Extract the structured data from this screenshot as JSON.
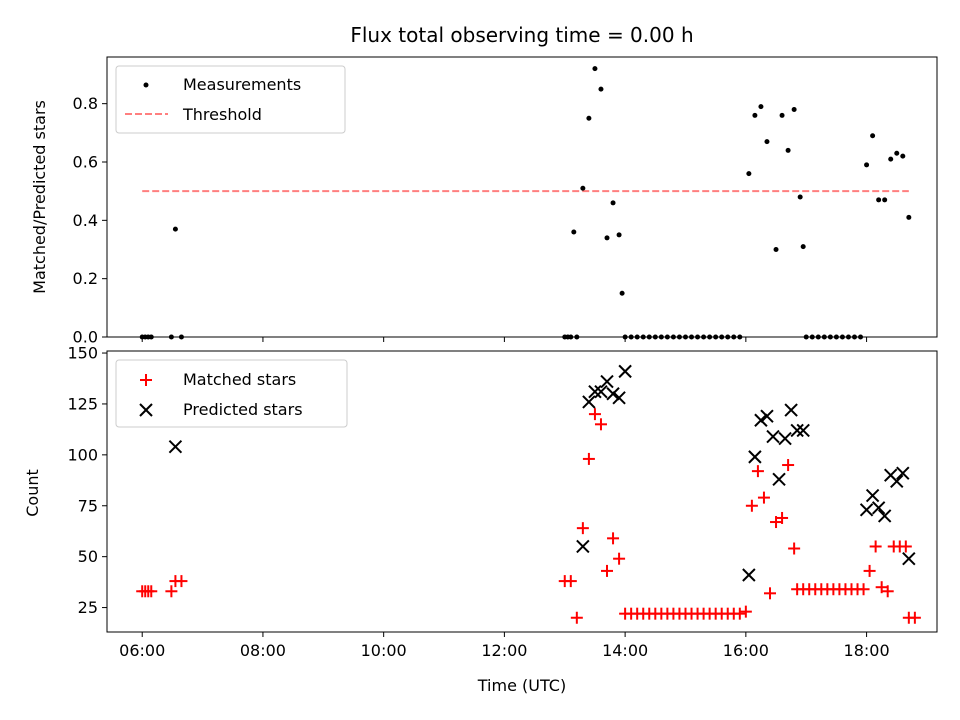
{
  "chart_data": [
    {
      "type": "scatter",
      "title": "Flux total observing time = 0.00 h",
      "ylabel": "Matched/Predicted stars",
      "xlabel": "",
      "xlim": [
        "05:25",
        "19:10"
      ],
      "ylim": [
        0,
        0.96
      ],
      "yticks": [
        0.0,
        0.2,
        0.4,
        0.6,
        0.8
      ],
      "grid": false,
      "legend": "upper left",
      "threshold": {
        "name": "Threshold",
        "value": 0.5,
        "color": "#ff7f7f",
        "style": "dashed"
      },
      "series": [
        {
          "name": "Measurements",
          "marker": "dot",
          "color": "#000000",
          "x": [
            "06:00",
            "06:03",
            "06:06",
            "06:09",
            "06:29",
            "06:33",
            "06:39",
            "13:00",
            "13:03",
            "13:06",
            "13:09",
            "13:12",
            "13:18",
            "13:24",
            "13:30",
            "13:36",
            "13:42",
            "13:48",
            "13:54",
            "13:57",
            "14:00",
            "14:06",
            "14:12",
            "14:18",
            "14:24",
            "14:30",
            "14:36",
            "14:42",
            "14:48",
            "14:54",
            "15:00",
            "15:06",
            "15:12",
            "15:18",
            "15:24",
            "15:30",
            "15:36",
            "15:42",
            "15:48",
            "15:54",
            "16:03",
            "16:09",
            "16:15",
            "16:21",
            "16:30",
            "16:36",
            "16:42",
            "16:48",
            "16:54",
            "16:57",
            "17:00",
            "17:06",
            "17:12",
            "17:18",
            "17:24",
            "17:30",
            "17:36",
            "17:42",
            "17:48",
            "17:54",
            "18:00",
            "18:06",
            "18:12",
            "18:18",
            "18:24",
            "18:30",
            "18:36",
            "18:42"
          ],
          "y": [
            0,
            0,
            0,
            0,
            0,
            0.37,
            0,
            0,
            0,
            0,
            0.36,
            0,
            0.51,
            0.75,
            0.92,
            0.85,
            0.34,
            0.46,
            0.35,
            0.15,
            0,
            0,
            0,
            0,
            0,
            0,
            0,
            0,
            0,
            0,
            0,
            0,
            0,
            0,
            0,
            0,
            0,
            0,
            0,
            0,
            0.56,
            0.76,
            0.79,
            0.67,
            0.3,
            0.76,
            0.64,
            0.78,
            0.48,
            0.31,
            0,
            0,
            0,
            0,
            0,
            0,
            0,
            0,
            0,
            0,
            0.59,
            0.69,
            0.47,
            0.47,
            0.61,
            0.63,
            0.62,
            0.41
          ]
        }
      ]
    },
    {
      "type": "scatter",
      "title": "",
      "ylabel": "Count",
      "xlabel": "Time (UTC)",
      "xlim": [
        "05:25",
        "19:10"
      ],
      "ylim": [
        13,
        151
      ],
      "yticks": [
        25,
        50,
        75,
        100,
        125,
        150
      ],
      "xticks": [
        "06:00",
        "08:00",
        "10:00",
        "12:00",
        "14:00",
        "16:00",
        "18:00"
      ],
      "grid": false,
      "legend": "upper left",
      "series": [
        {
          "name": "Matched stars",
          "marker": "plus",
          "color": "#ff0000",
          "x": [
            "06:00",
            "06:03",
            "06:06",
            "06:09",
            "06:29",
            "06:33",
            "06:39",
            "13:00",
            "13:06",
            "13:12",
            "13:18",
            "13:24",
            "13:30",
            "13:36",
            "13:42",
            "13:48",
            "13:54",
            "14:00",
            "14:06",
            "14:12",
            "14:18",
            "14:24",
            "14:30",
            "14:36",
            "14:42",
            "14:48",
            "14:54",
            "15:00",
            "15:06",
            "15:12",
            "15:18",
            "15:24",
            "15:30",
            "15:36",
            "15:42",
            "15:48",
            "15:54",
            "16:00",
            "16:06",
            "16:12",
            "16:18",
            "16:24",
            "16:30",
            "16:36",
            "16:42",
            "16:48",
            "16:51",
            "16:57",
            "17:03",
            "17:09",
            "17:15",
            "17:21",
            "17:27",
            "17:33",
            "17:39",
            "17:45",
            "17:51",
            "17:57",
            "18:03",
            "18:09",
            "18:15",
            "18:21",
            "18:27",
            "18:33",
            "18:39",
            "18:42",
            "18:48"
          ],
          "y": [
            33,
            33,
            33,
            33,
            33,
            38,
            38,
            38,
            38,
            20,
            64,
            98,
            120,
            115,
            43,
            59,
            49,
            22,
            22,
            22,
            22,
            22,
            22,
            22,
            22,
            22,
            22,
            22,
            22,
            22,
            22,
            22,
            22,
            22,
            22,
            22,
            22,
            23,
            75,
            92,
            79,
            32,
            67,
            69,
            95,
            54,
            34,
            34,
            34,
            34,
            34,
            34,
            34,
            34,
            34,
            34,
            34,
            34,
            43,
            55,
            35,
            33,
            55,
            55,
            55,
            20,
            20
          ]
        },
        {
          "name": "Predicted stars",
          "marker": "x",
          "color": "#000000",
          "x": [
            "06:33",
            "13:18",
            "13:24",
            "13:30",
            "13:36",
            "13:42",
            "13:48",
            "13:54",
            "14:00",
            "16:03",
            "16:09",
            "16:15",
            "16:21",
            "16:27",
            "16:33",
            "16:39",
            "16:45",
            "16:51",
            "16:57",
            "18:00",
            "18:06",
            "18:12",
            "18:18",
            "18:24",
            "18:30",
            "18:36",
            "18:42"
          ],
          "y": [
            104,
            55,
            126,
            131,
            131,
            136,
            130,
            128,
            141,
            41,
            99,
            117,
            119,
            109,
            88,
            108,
            122,
            112,
            112,
            73,
            80,
            74,
            70,
            90,
            87,
            91,
            49
          ]
        }
      ]
    }
  ]
}
